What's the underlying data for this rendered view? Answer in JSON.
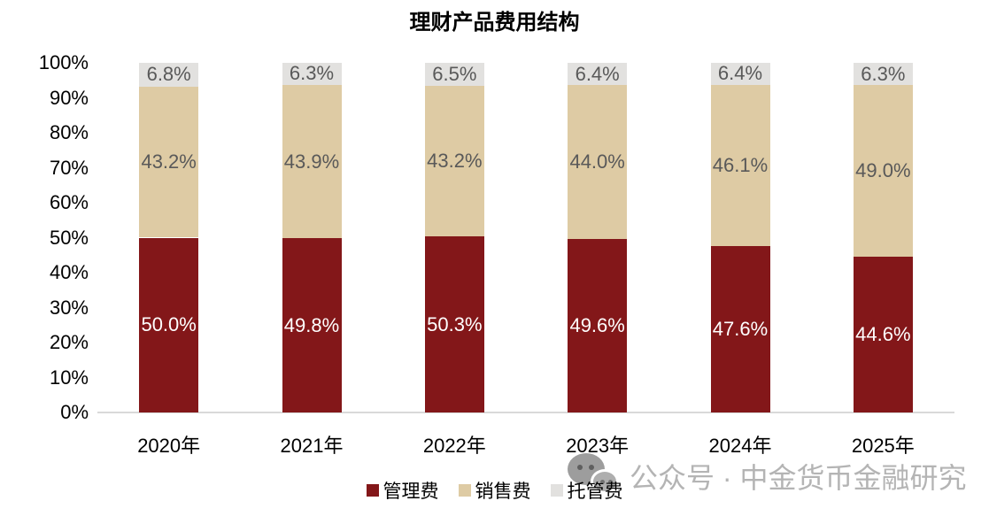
{
  "title": "理财产品费用结构",
  "chart_data": {
    "type": "bar",
    "stacked": true,
    "title": "理财产品费用结构",
    "categories": [
      "2020年",
      "2021年",
      "2022年",
      "2023年",
      "2024年",
      "2025年"
    ],
    "series": [
      {
        "name": "管理费",
        "color": "#831719",
        "label_color": "#ffffff",
        "values": [
          50.0,
          49.8,
          50.3,
          49.6,
          47.6,
          44.6
        ],
        "labels": [
          "50.0%",
          "49.8%",
          "50.3%",
          "49.6%",
          "47.6%",
          "44.6%"
        ]
      },
      {
        "name": "销售费",
        "color": "#DECBA4",
        "label_color": "#595959",
        "values": [
          43.2,
          43.9,
          43.2,
          44.0,
          46.1,
          49.0
        ],
        "labels": [
          "43.2%",
          "43.9%",
          "43.2%",
          "44.0%",
          "46.1%",
          "49.0%"
        ]
      },
      {
        "name": "托管费",
        "color": "#E2E1DF",
        "label_color": "#595959",
        "values": [
          6.8,
          6.3,
          6.5,
          6.4,
          6.4,
          6.3
        ],
        "labels": [
          "6.8%",
          "6.3%",
          "6.5%",
          "6.4%",
          "6.4%",
          "6.3%"
        ]
      }
    ],
    "y_axis": {
      "ticks": [
        "100%",
        "90%",
        "80%",
        "70%",
        "60%",
        "50%",
        "40%",
        "30%",
        "20%",
        "10%",
        "0%"
      ],
      "min": 0,
      "max": 100
    },
    "value_suffix": "%",
    "legend_position": "bottom",
    "grid": false,
    "baseline_color": "#d9d9d9"
  },
  "watermark": {
    "icon": "wechat-icon",
    "text": "公众号 · 中金货币金融研究",
    "color": "#b4b4b4"
  }
}
